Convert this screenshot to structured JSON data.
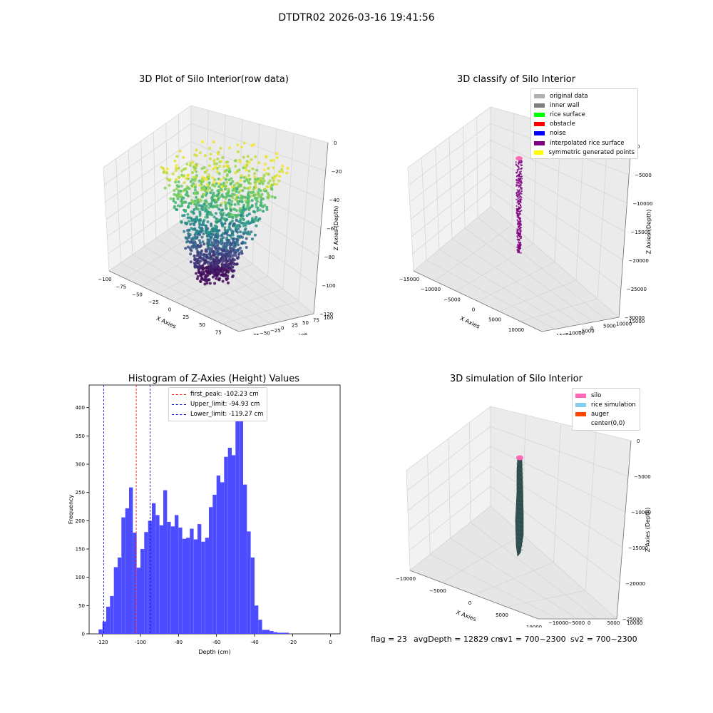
{
  "suptitle": "DTDTR02 2026-03-16 19:41:56",
  "colors": {
    "viridis_low": "#440154",
    "viridis_mid": "#21918c",
    "viridis_high": "#fde725",
    "hist_bar": "#4d4dff",
    "peak_line": "#ff0000",
    "limit_line": "#0000cc",
    "silo": "#ff69b4",
    "rice_sim": "#2f4f4f"
  },
  "plot1": {
    "title": "3D Plot of Silo Interior(row data)",
    "xlabel": "X Axies",
    "ylabel": "Y Axies",
    "zlabel": "Z Axies (Depth)",
    "xticks": [
      "−100",
      "−75",
      "−50",
      "−25",
      "0",
      "25",
      "50",
      "75",
      "100"
    ],
    "yticks": [
      "−75",
      "−50",
      "−25",
      "0",
      "25",
      "50",
      "75",
      "100"
    ],
    "zticks": [
      "0",
      "−20",
      "−40",
      "−60",
      "−80",
      "−100",
      "−120"
    ]
  },
  "plot2": {
    "title": "3D classify of Silo Interior",
    "xlabel": "X Axies",
    "ylabel": "Y Axies",
    "zlabel": "Z Axies (Depth)",
    "xticks": [
      "−15000",
      "−10000",
      "−5000",
      "0",
      "5000",
      "10000",
      "15000"
    ],
    "yticks": [
      "−15000",
      "−10000",
      "−5000",
      "0",
      "5000",
      "10000",
      "15000"
    ],
    "zticks": [
      "0",
      "−5000",
      "−10000",
      "−15000",
      "−20000",
      "−25000",
      "−30000"
    ],
    "legend": [
      {
        "label": "original data",
        "color": "#b0b0b0"
      },
      {
        "label": "inner wall",
        "color": "#808080"
      },
      {
        "label": "rice surface",
        "color": "#00ff00"
      },
      {
        "label": "obstacle",
        "color": "#ff0000"
      },
      {
        "label": "noise",
        "color": "#0000ff"
      },
      {
        "label": "interpolated rice surface",
        "color": "#800080"
      },
      {
        "label": "symmetric generated points",
        "color": "#ffff00"
      }
    ]
  },
  "plot3": {
    "title": "Histogram of Z-Axies (Height) Values",
    "xlabel": "Depth (cm)",
    "ylabel": "Frequency",
    "legend": [
      {
        "label": "first_peak: -102.23 cm",
        "color": "#ff0000"
      },
      {
        "label": "Upper_limit: -94.93 cm",
        "color": "#0000cc"
      },
      {
        "label": "Lower_limit: -119.27 cm",
        "color": "#0000cc"
      }
    ]
  },
  "plot4": {
    "title": "3D simulation of Silo Interior",
    "xlabel": "X Axies",
    "ylabel": "Y Axies",
    "zlabel": "Z Axies (Depth)",
    "xticks": [
      "−10000",
      "−5000",
      "0",
      "5000",
      "10000"
    ],
    "yticks": [
      "−10000",
      "−5000",
      "0",
      "5000",
      "10000"
    ],
    "zticks": [
      "0",
      "−5000",
      "−10000",
      "−15000",
      "−20000",
      "−25000"
    ],
    "legend": [
      {
        "label": "silo",
        "color": "#ff69b4"
      },
      {
        "label": "rice simulation",
        "color": "#87ceeb"
      },
      {
        "label": "auger",
        "color": "#ff4500"
      },
      {
        "label": "center(0,0)",
        "color": "#ffffff"
      }
    ]
  },
  "footer": {
    "flag": "flag = 23",
    "avg_depth": "avgDepth = 12829 cm",
    "sv1": "sv1 = 700~2300",
    "sv2": "sv2 = 700~2300"
  },
  "chart_data": [
    {
      "type": "scatter",
      "title": "3D Plot of Silo Interior(row data)",
      "xlabel": "X Axies",
      "ylabel": "Y Axies",
      "zlabel": "Z Axies (Depth)",
      "xlim": [
        -100,
        100
      ],
      "ylim": [
        -75,
        100
      ],
      "zlim": [
        -130,
        0
      ],
      "colormap": "viridis",
      "grid": true
    },
    {
      "type": "scatter",
      "title": "3D classify of Silo Interior",
      "xlim": [
        -15000,
        15000
      ],
      "ylim": [
        -15000,
        15000
      ],
      "zlim": [
        -30000,
        0
      ],
      "series": [
        {
          "name": "original data"
        },
        {
          "name": "inner wall"
        },
        {
          "name": "rice surface"
        },
        {
          "name": "obstacle"
        },
        {
          "name": "noise"
        },
        {
          "name": "interpolated rice surface"
        },
        {
          "name": "symmetric generated points"
        }
      ],
      "legend": "top-right",
      "grid": true
    },
    {
      "type": "bar",
      "title": "Histogram of Z-Axies (Height) Values",
      "xlabel": "Depth (cm)",
      "ylabel": "Frequency",
      "xlim": [
        -127,
        5
      ],
      "ylim": [
        0,
        440
      ],
      "xticks": [
        -120,
        -100,
        -80,
        -60,
        -40,
        -20,
        0
      ],
      "yticks": [
        0,
        50,
        100,
        150,
        200,
        250,
        300,
        350,
        400
      ],
      "bin_start": -122,
      "bin_width": 2,
      "values": [
        8,
        22,
        48,
        67,
        118,
        135,
        206,
        222,
        259,
        179,
        117,
        150,
        180,
        200,
        231,
        210,
        192,
        254,
        198,
        190,
        210,
        188,
        168,
        170,
        186,
        167,
        194,
        163,
        170,
        224,
        246,
        280,
        268,
        313,
        329,
        316,
        409,
        403,
        264,
        181,
        135,
        50,
        25,
        7,
        7,
        5,
        3,
        2,
        2,
        2
      ],
      "vlines": [
        {
          "x": -102.23,
          "label": "first_peak: -102.23 cm"
        },
        {
          "x": -94.93,
          "label": "Upper_limit: -94.93 cm"
        },
        {
          "x": -119.27,
          "label": "Lower_limit: -119.27 cm"
        }
      ],
      "legend": "top-center"
    },
    {
      "type": "area",
      "title": "3D simulation of Silo Interior",
      "xlim": [
        -13000,
        13000
      ],
      "ylim": [
        -13000,
        13000
      ],
      "zlim": [
        -28000,
        0
      ],
      "series": [
        {
          "name": "silo"
        },
        {
          "name": "rice simulation"
        },
        {
          "name": "auger"
        },
        {
          "name": "center(0,0)"
        }
      ],
      "legend": "top-right",
      "grid": true
    }
  ]
}
